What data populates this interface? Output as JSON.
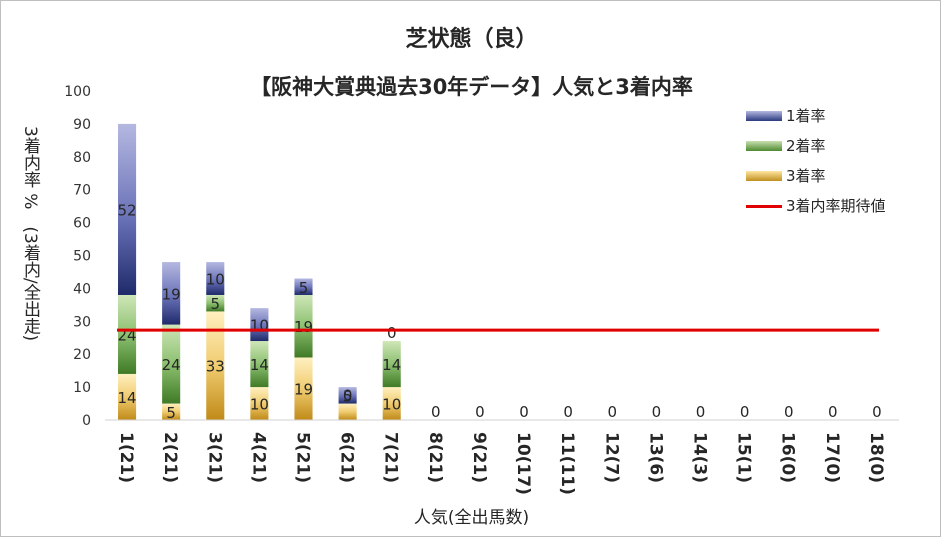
{
  "chart_data": {
    "type": "bar",
    "stacked": true,
    "title": "芝状態（良）",
    "subtitle": "【阪神大賞典過去30年データ】人気と3着内率",
    "xlabel": "人気(全出馬数)",
    "ylabel": "3着内率 %　(3着内/全出走)",
    "ylim": [
      0,
      100
    ],
    "yticks": [
      0,
      10,
      20,
      30,
      40,
      50,
      60,
      70,
      80,
      90,
      100
    ],
    "categories": [
      "1(21)",
      "2(21)",
      "3(21)",
      "4(21)",
      "5(21)",
      "6(21)",
      "7(21)",
      "8(21)",
      "9(21)",
      "10(17)",
      "11(11)",
      "12(7)",
      "13(6)",
      "14(3)",
      "15(1)",
      "16(0)",
      "17(0)",
      "18(0)"
    ],
    "series": [
      {
        "name": "3着率",
        "values": [
          14,
          5,
          33,
          10,
          19,
          5,
          10,
          0,
          0,
          0,
          0,
          0,
          0,
          0,
          0,
          0,
          0,
          0
        ],
        "labels": [
          "14",
          "5",
          "33",
          "10",
          "19",
          "",
          "10",
          "0",
          "",
          "0",
          "0",
          "0",
          "0",
          "0",
          "0",
          "0",
          "0",
          "0"
        ]
      },
      {
        "name": "2着率",
        "values": [
          24,
          24,
          5,
          14,
          19,
          0,
          14,
          0,
          0,
          0,
          0,
          0,
          0,
          0,
          0,
          0,
          0,
          0
        ],
        "labels": [
          "24",
          "24",
          "5",
          "14",
          "19",
          "0",
          "14",
          "",
          "",
          "",
          "",
          "",
          "",
          "",
          "",
          "",
          "",
          ""
        ]
      },
      {
        "name": "1着率",
        "values": [
          52,
          19,
          10,
          10,
          5,
          5,
          0,
          0,
          0,
          0,
          0,
          0,
          0,
          0,
          0,
          0,
          0,
          0
        ],
        "labels": [
          "52",
          "19",
          "10",
          "10",
          "5",
          "5",
          "0",
          "",
          "0",
          "",
          "",
          "",
          "",
          "",
          "",
          "",
          "",
          ""
        ]
      }
    ],
    "reference_line": {
      "name": "3着内率期待値",
      "value": 27.3,
      "color": "#e00000"
    },
    "legend_position": "top-right",
    "grid": false
  },
  "legend": {
    "item1": "1着率",
    "item2": "2着率",
    "item3": "3着率",
    "item4": "3着内率期待値"
  }
}
